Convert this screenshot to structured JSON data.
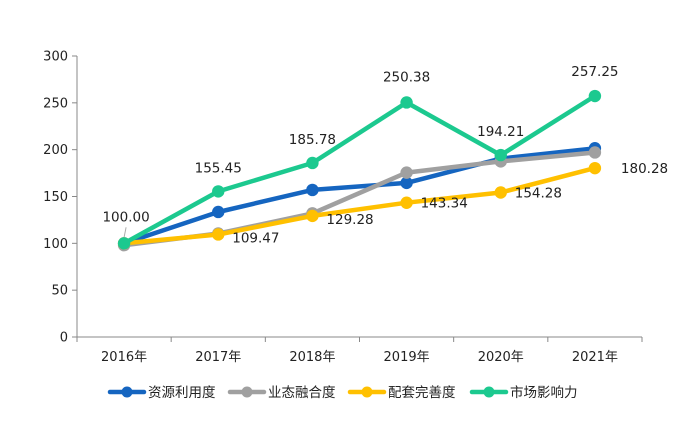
{
  "chart_data": {
    "type": "line",
    "title": "",
    "xlabel": "",
    "ylabel": "",
    "categories": [
      "2016年",
      "2017年",
      "2018年",
      "2019年",
      "2020年",
      "2021年"
    ],
    "ylim": [
      0,
      300
    ],
    "yticks": [
      0,
      50,
      100,
      150,
      200,
      250,
      300
    ],
    "grid": false,
    "legend": "bottom",
    "series": [
      {
        "name": "资源利用度",
        "color": "#1565C0",
        "values": [
          100.0,
          133.5,
          157.0,
          164.5,
          190.5,
          201.5
        ]
      },
      {
        "name": "业态融合度",
        "color": "#A0A0A0",
        "values": [
          98.0,
          110.5,
          132.0,
          175.5,
          187.5,
          197.0
        ]
      },
      {
        "name": "配套完善度",
        "color": "#FFC000",
        "values": [
          100.0,
          109.47,
          129.28,
          143.34,
          154.28,
          180.28
        ]
      },
      {
        "name": "市场影响力",
        "color": "#1CC98F",
        "values": [
          100.0,
          155.45,
          185.78,
          250.38,
          194.21,
          257.25
        ]
      }
    ],
    "data_labels": [
      {
        "series": 3,
        "index": 0,
        "text": "100.00"
      },
      {
        "series": 2,
        "index": 1,
        "text": "109.47"
      },
      {
        "series": 2,
        "index": 2,
        "text": "129.28"
      },
      {
        "series": 2,
        "index": 3,
        "text": "143.34"
      },
      {
        "series": 2,
        "index": 4,
        "text": "154.28"
      },
      {
        "series": 2,
        "index": 5,
        "text": "180.28"
      },
      {
        "series": 3,
        "index": 1,
        "text": "155.45"
      },
      {
        "series": 3,
        "index": 2,
        "text": "185.78"
      },
      {
        "series": 3,
        "index": 3,
        "text": "250.38"
      },
      {
        "series": 3,
        "index": 4,
        "text": "194.21"
      },
      {
        "series": 3,
        "index": 5,
        "text": "257.25"
      }
    ]
  }
}
